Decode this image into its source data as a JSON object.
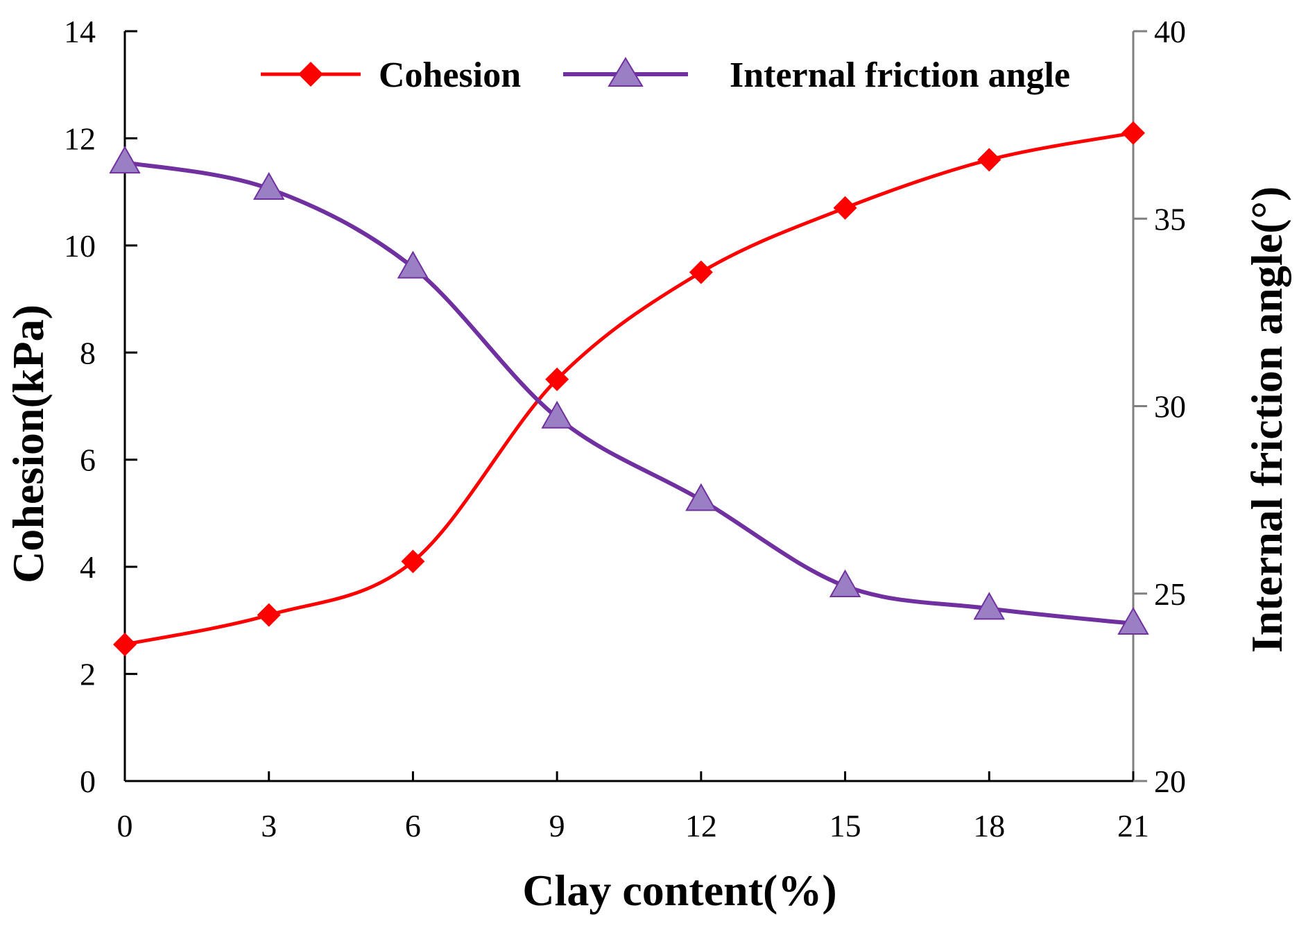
{
  "chart_data": {
    "type": "line",
    "xlabel": "Clay content(%)",
    "ylabel": "Cohesion(kPa)",
    "y2label": "Internal friction angle(°)",
    "x": [
      0,
      3,
      6,
      9,
      12,
      15,
      18,
      21
    ],
    "x_ticks": [
      "0",
      "3",
      "6",
      "9",
      "12",
      "15",
      "18",
      "21"
    ],
    "ylim": [
      0,
      14
    ],
    "y_ticks": [
      "0",
      "2",
      "4",
      "6",
      "8",
      "10",
      "12",
      "14"
    ],
    "y2lim": [
      20,
      40
    ],
    "y2_ticks": [
      "20",
      "25",
      "30",
      "35",
      "40"
    ],
    "legend_position": "top",
    "series": [
      {
        "name": "Cohesion",
        "axis": "left",
        "color": "#ff0000",
        "marker": "diamond",
        "values": [
          2.55,
          3.1,
          4.1,
          7.5,
          9.5,
          10.7,
          11.6,
          12.1
        ]
      },
      {
        "name": "Internal friction angle",
        "axis": "right",
        "color": "#7030a0",
        "marker_fill": "#9b7fc4",
        "marker": "triangle",
        "values": [
          36.5,
          35.8,
          33.7,
          29.7,
          27.5,
          25.2,
          24.6,
          24.2
        ]
      }
    ]
  }
}
